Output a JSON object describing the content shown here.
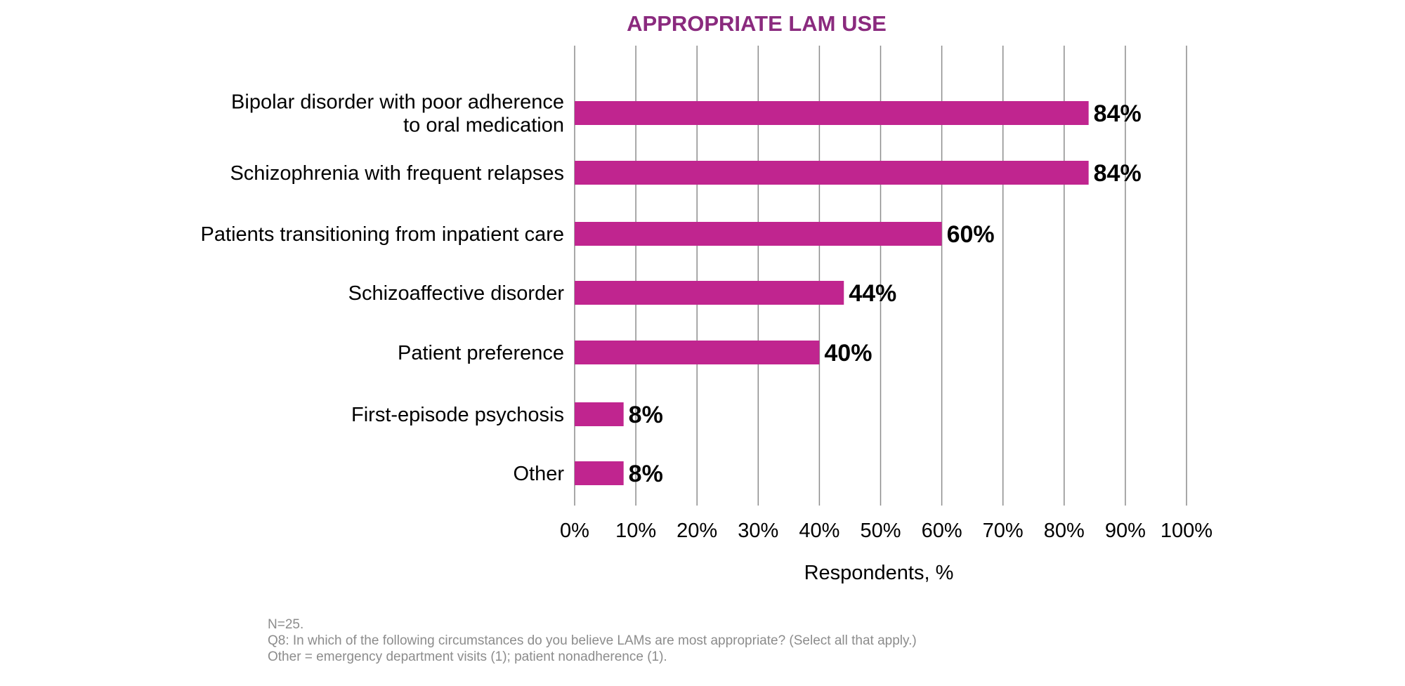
{
  "chart_data": {
    "type": "bar",
    "orientation": "horizontal",
    "title": "APPROPRIATE LAM USE",
    "categories": [
      [
        "Bipolar disorder with poor adherence",
        "to oral medication"
      ],
      [
        "Schizophrenia with frequent relapses"
      ],
      [
        "Patients transitioning from inpatient care"
      ],
      [
        "Schizoaffective disorder"
      ],
      [
        "Patient preference"
      ],
      [
        "First-episode psychosis"
      ],
      [
        "Other"
      ]
    ],
    "values": [
      84,
      84,
      60,
      44,
      40,
      8,
      8
    ],
    "value_labels": [
      "84%",
      "84%",
      "60%",
      "44%",
      "40%",
      "8%",
      "8%"
    ],
    "xlabel": "Respondents, %",
    "ylabel": "",
    "xlim": [
      0,
      100
    ],
    "ticks": [
      0,
      10,
      20,
      30,
      40,
      50,
      60,
      70,
      80,
      90,
      100
    ],
    "tick_labels": [
      "0%",
      "10%",
      "20%",
      "30%",
      "40%",
      "50%",
      "60%",
      "70%",
      "80%",
      "90%",
      "100%"
    ],
    "grid": true,
    "colors": {
      "bar": "#c0258f",
      "title": "#8a2a7e",
      "grid": "#8c8c8c"
    }
  },
  "footnotes": [
    "N=25.",
    "Q8: In which of the following circumstances do you believe LAMs are most appropriate? (Select all that apply.)",
    "Other = emergency department visits (1); patient nonadherence (1)."
  ]
}
